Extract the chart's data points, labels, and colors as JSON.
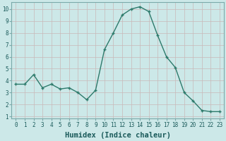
{
  "x": [
    0,
    1,
    2,
    3,
    4,
    5,
    6,
    7,
    8,
    9,
    10,
    11,
    12,
    13,
    14,
    15,
    16,
    17,
    18,
    19,
    20,
    21,
    22,
    23
  ],
  "y": [
    3.7,
    3.7,
    4.5,
    3.4,
    3.7,
    3.3,
    3.4,
    3.0,
    2.4,
    3.2,
    6.6,
    8.0,
    9.5,
    10.0,
    10.2,
    9.8,
    7.8,
    6.0,
    5.1,
    3.0,
    2.3,
    1.5,
    1.4,
    1.4
  ],
  "line_color": "#2d7a6b",
  "marker_color": "#2d7a6b",
  "bg_color": "#cce8e8",
  "grid_color": "#b0d4d4",
  "xlabel": "Humidex (Indice chaleur)",
  "xlim": [
    -0.5,
    23.5
  ],
  "ylim": [
    0.8,
    10.6
  ],
  "yticks": [
    1,
    2,
    3,
    4,
    5,
    6,
    7,
    8,
    9,
    10
  ],
  "xticks": [
    0,
    1,
    2,
    3,
    4,
    5,
    6,
    7,
    8,
    9,
    10,
    11,
    12,
    13,
    14,
    15,
    16,
    17,
    18,
    19,
    20,
    21,
    22,
    23
  ],
  "tick_label_fontsize": 5.5,
  "xlabel_fontsize": 7.5,
  "xlabel_fontweight": "bold"
}
